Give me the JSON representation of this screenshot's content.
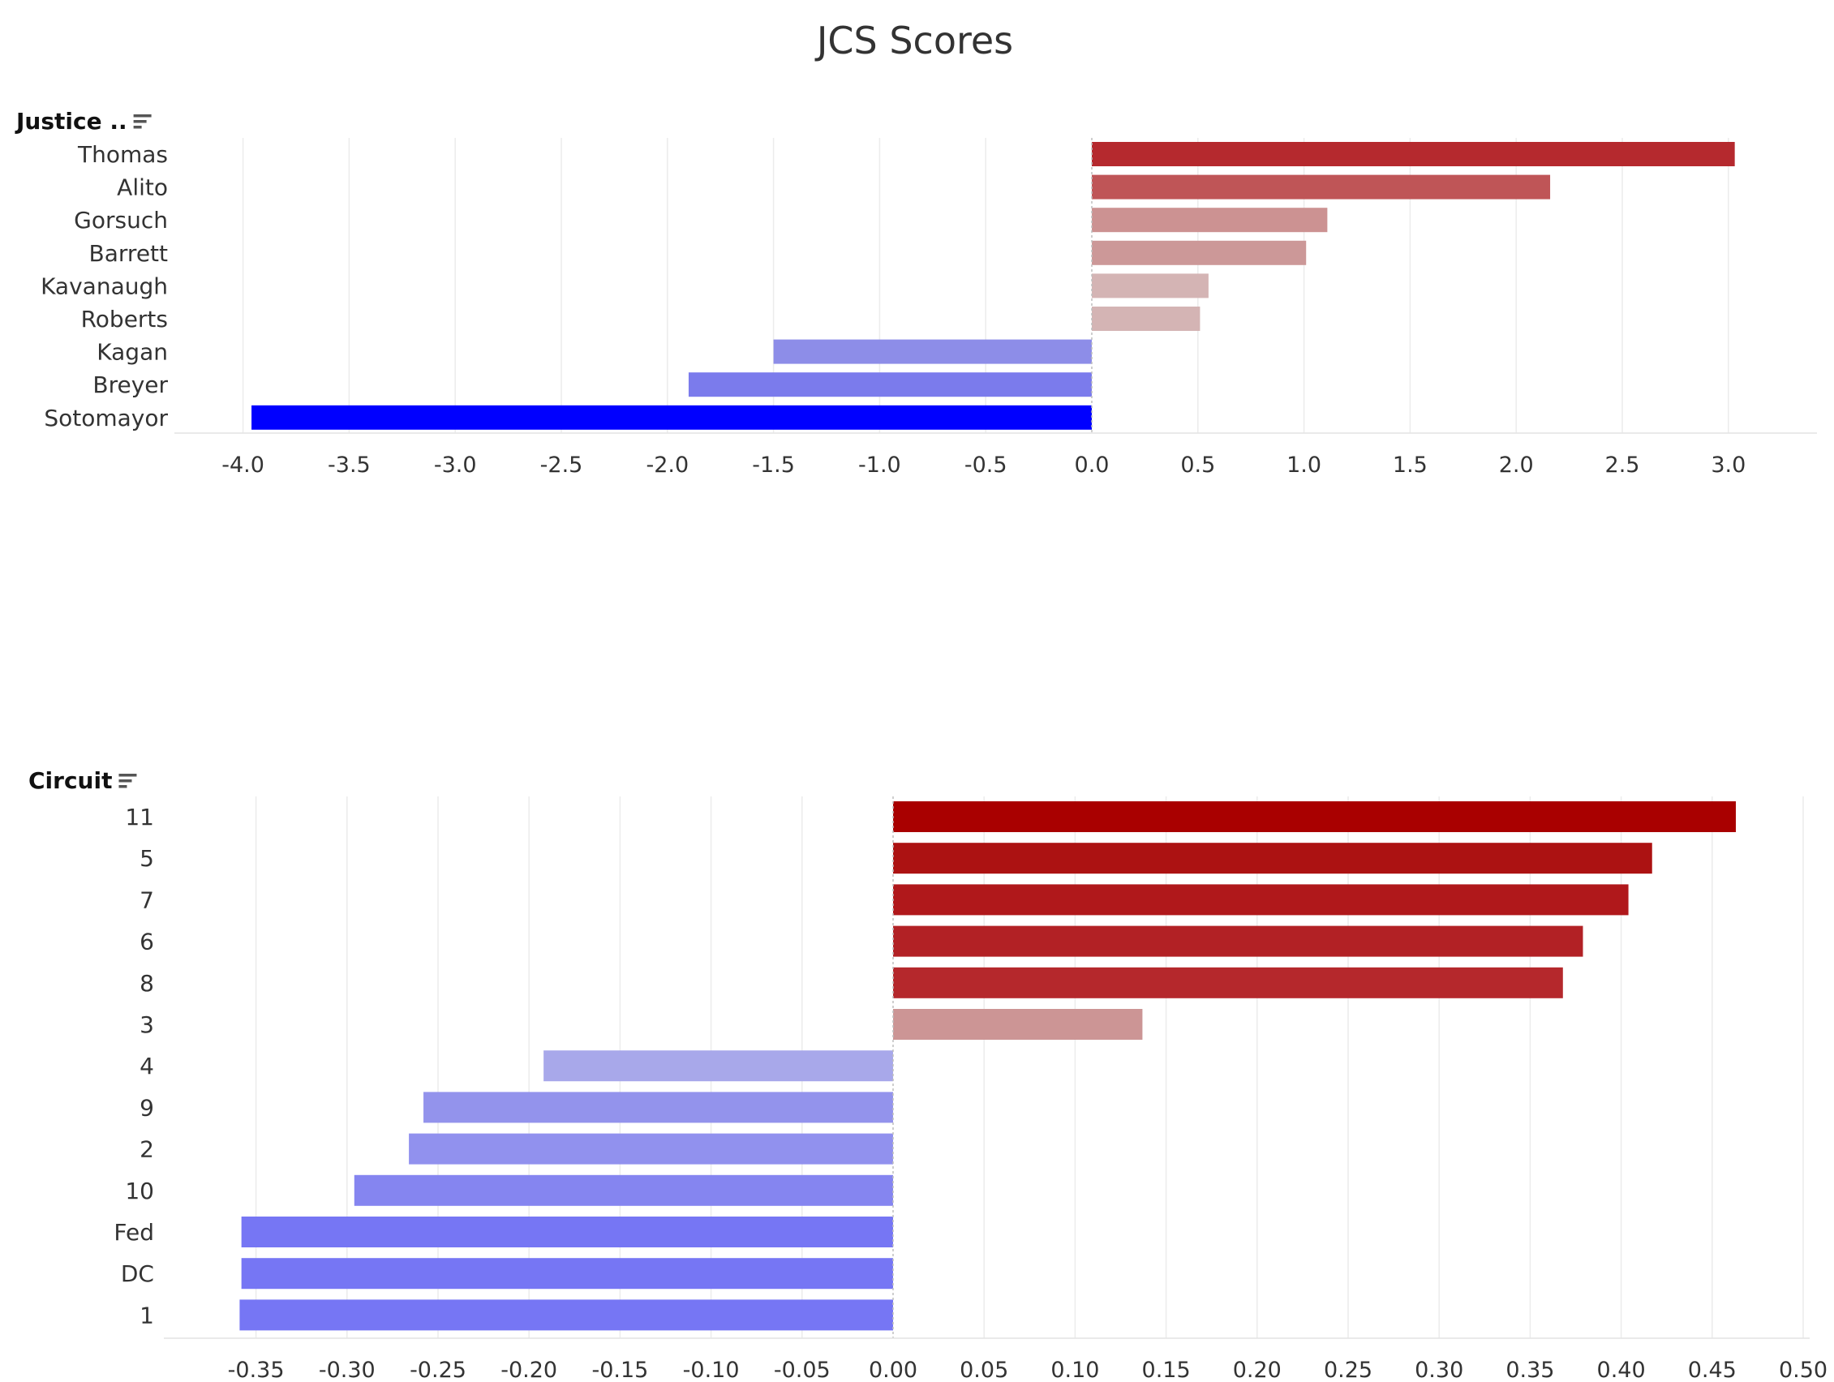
{
  "chart_title": "JCS Scores",
  "sort_icon": "sort-descending-icon",
  "chart_data": [
    {
      "type": "bar",
      "orientation": "horizontal",
      "field_label": "Justice ..",
      "categories": [
        "Thomas",
        "Alito",
        "Gorsuch",
        "Barrett",
        "Kavanaugh",
        "Roberts",
        "Kagan",
        "Breyer",
        "Sotomayor"
      ],
      "values": [
        3.03,
        2.16,
        1.11,
        1.01,
        0.55,
        0.51,
        -1.5,
        -1.9,
        -3.96
      ],
      "bar_colors": [
        "#b5292e",
        "#bf5557",
        "#cc9292",
        "#cc9898",
        "#d4b4b4",
        "#d4b4b4",
        "#8d8de8",
        "#7b7bec",
        "#0000ff"
      ],
      "xlim": [
        -4.3,
        3.4
      ],
      "xticks": [
        -4.0,
        -3.5,
        -3.0,
        -2.5,
        -2.0,
        -1.5,
        -1.0,
        -0.5,
        0.0,
        0.5,
        1.0,
        1.5,
        2.0,
        2.5,
        3.0
      ],
      "xtick_labels": [
        "-4.0",
        "-3.5",
        "-3.0",
        "-2.5",
        "-2.0",
        "-1.5",
        "-1.0",
        "-0.5",
        "0.0",
        "0.5",
        "1.0",
        "1.5",
        "2.0",
        "2.5",
        "3.0"
      ],
      "grid": true
    },
    {
      "type": "bar",
      "orientation": "horizontal",
      "field_label": "Circuit",
      "categories": [
        "11",
        "5",
        "7",
        "6",
        "8",
        "3",
        "4",
        "9",
        "2",
        "10",
        "Fed",
        "DC",
        "1"
      ],
      "values": [
        0.463,
        0.417,
        0.404,
        0.379,
        0.368,
        0.137,
        -0.192,
        -0.258,
        -0.266,
        -0.296,
        -0.358,
        -0.358,
        -0.359
      ],
      "bar_colors": [
        "#a90000",
        "#ac1212",
        "#b0181b",
        "#b22125",
        "#b5282c",
        "#cc9595",
        "#a8a8ea",
        "#9393ec",
        "#9191ee",
        "#8585f0",
        "#7676f4",
        "#7676f4",
        "#7676f4"
      ],
      "xlim": [
        -0.4,
        0.5
      ],
      "xticks": [
        -0.35,
        -0.3,
        -0.25,
        -0.2,
        -0.15,
        -0.1,
        -0.05,
        0.0,
        0.05,
        0.1,
        0.15,
        0.2,
        0.25,
        0.3,
        0.35,
        0.4,
        0.45,
        0.5
      ],
      "xtick_labels": [
        "-0.35",
        "-0.30",
        "-0.25",
        "-0.20",
        "-0.15",
        "-0.10",
        "-0.05",
        "0.00",
        "0.05",
        "0.10",
        "0.15",
        "0.20",
        "0.25",
        "0.30",
        "0.35",
        "0.40",
        "0.45",
        "0.50"
      ],
      "grid": true
    }
  ]
}
